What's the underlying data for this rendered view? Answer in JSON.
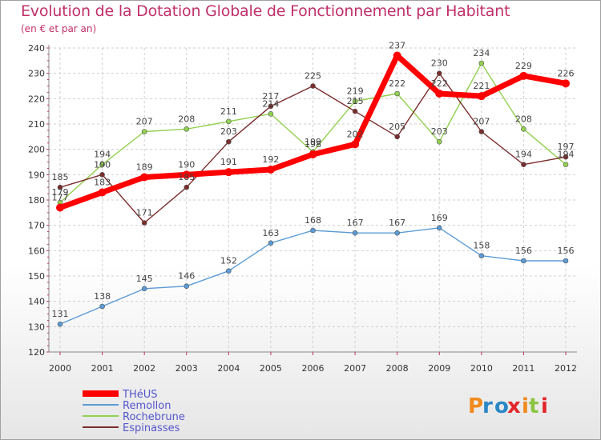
{
  "chart_data": {
    "type": "line",
    "title": "Evolution de la Dotation Globale de Fonctionnement par Habitant",
    "subtitle": "(en € et par an)",
    "x": [
      "2000",
      "2001",
      "2002",
      "2003",
      "2004",
      "2005",
      "2006",
      "2007",
      "2008",
      "2009",
      "2010",
      "2011",
      "2012"
    ],
    "ylim": [
      120,
      240
    ],
    "yticks": [
      120,
      130,
      140,
      150,
      160,
      170,
      180,
      190,
      200,
      210,
      220,
      230,
      240
    ],
    "grid": true,
    "series": [
      {
        "name": "THéUS",
        "color": "#ff0000",
        "values": [
          177,
          183,
          189,
          190,
          191,
          192,
          198,
          202,
          237,
          222,
          221,
          229,
          226
        ]
      },
      {
        "name": "Remollon",
        "color": "#5b9bd5",
        "values": [
          131,
          138,
          145,
          146,
          152,
          163,
          168,
          167,
          167,
          169,
          158,
          156,
          156
        ]
      },
      {
        "name": "Rochebrune",
        "color": "#92d050",
        "values": [
          179,
          194,
          207,
          208,
          211,
          214,
          199,
          219,
          222,
          203,
          234,
          208,
          194
        ]
      },
      {
        "name": "Espinasses",
        "color": "#7b2c2c",
        "values": [
          185,
          190,
          171,
          185,
          203,
          217,
          225,
          215,
          205,
          230,
          207,
          194,
          197
        ]
      }
    ]
  },
  "logo": {
    "text": "Proxiti",
    "letters": [
      "P",
      "r",
      "o",
      "x",
      "i",
      "t",
      "i"
    ]
  }
}
